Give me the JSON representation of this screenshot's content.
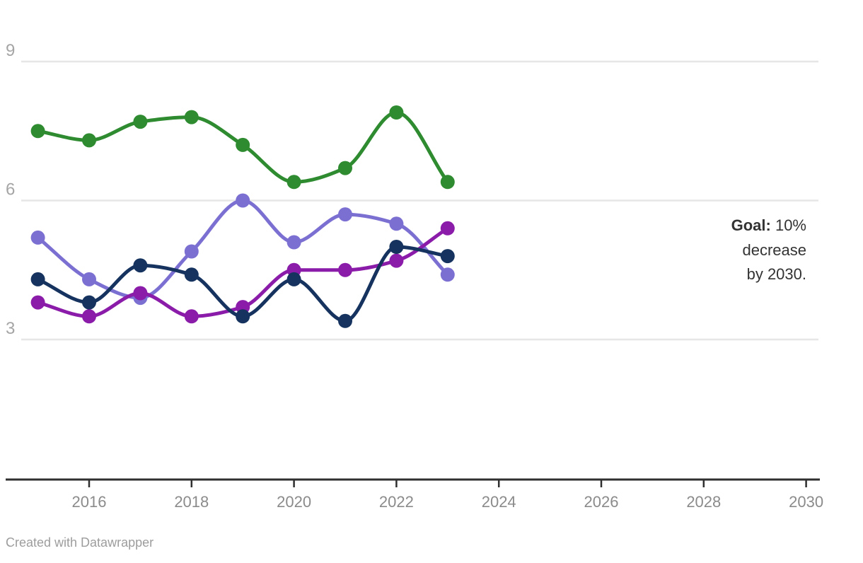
{
  "chart_data": {
    "type": "line",
    "x": [
      2015,
      2016,
      2017,
      2018,
      2019,
      2020,
      2021,
      2022,
      2023
    ],
    "series": [
      {
        "id": "green-line",
        "color": "#2e8b30",
        "values": [
          7.5,
          7.3,
          7.7,
          7.8,
          7.2,
          6.4,
          6.7,
          7.9,
          6.4
        ]
      },
      {
        "id": "periwinkle-line",
        "color": "#7b70d2",
        "values": [
          5.2,
          4.3,
          3.9,
          4.9,
          6.0,
          5.1,
          5.7,
          5.5,
          4.4
        ]
      },
      {
        "id": "magenta-line",
        "color": "#8a1ca9",
        "values": [
          3.8,
          3.5,
          4.0,
          3.5,
          3.7,
          4.5,
          4.5,
          4.7,
          5.4
        ]
      },
      {
        "id": "navy-line",
        "color": "#15335e",
        "values": [
          4.3,
          3.8,
          4.6,
          4.4,
          3.5,
          4.3,
          3.4,
          5.0,
          4.8
        ]
      }
    ],
    "title": "",
    "xlabel": "",
    "ylabel": "",
    "x_axis": {
      "ticks": [
        2016,
        2018,
        2020,
        2022,
        2024,
        2026,
        2028,
        2030
      ],
      "range": [
        2015,
        2030
      ]
    },
    "y_axis": {
      "ticks": [
        3,
        6,
        9
      ],
      "range": [
        0,
        9.3
      ]
    },
    "grid": "horizontal",
    "legend": "none",
    "marker_radius": 10,
    "line_width": 5
  },
  "annotation": {
    "bold": "Goal:",
    "rest": " 10%",
    "line2": "decrease",
    "line3": "by 2030.",
    "full_text": "Goal: 10% decrease by 2030."
  },
  "footer": {
    "credit": "Created with Datawrapper"
  },
  "style_colors": {
    "axis_line": "#2f2f2f",
    "gridline": "#e6e6e6",
    "x_tick_label": "#8b8b8b",
    "y_tick_label": "#a5a5a5",
    "annotation_text": "#333333",
    "credit_text": "#9d9d9d",
    "background": "#ffffff"
  }
}
